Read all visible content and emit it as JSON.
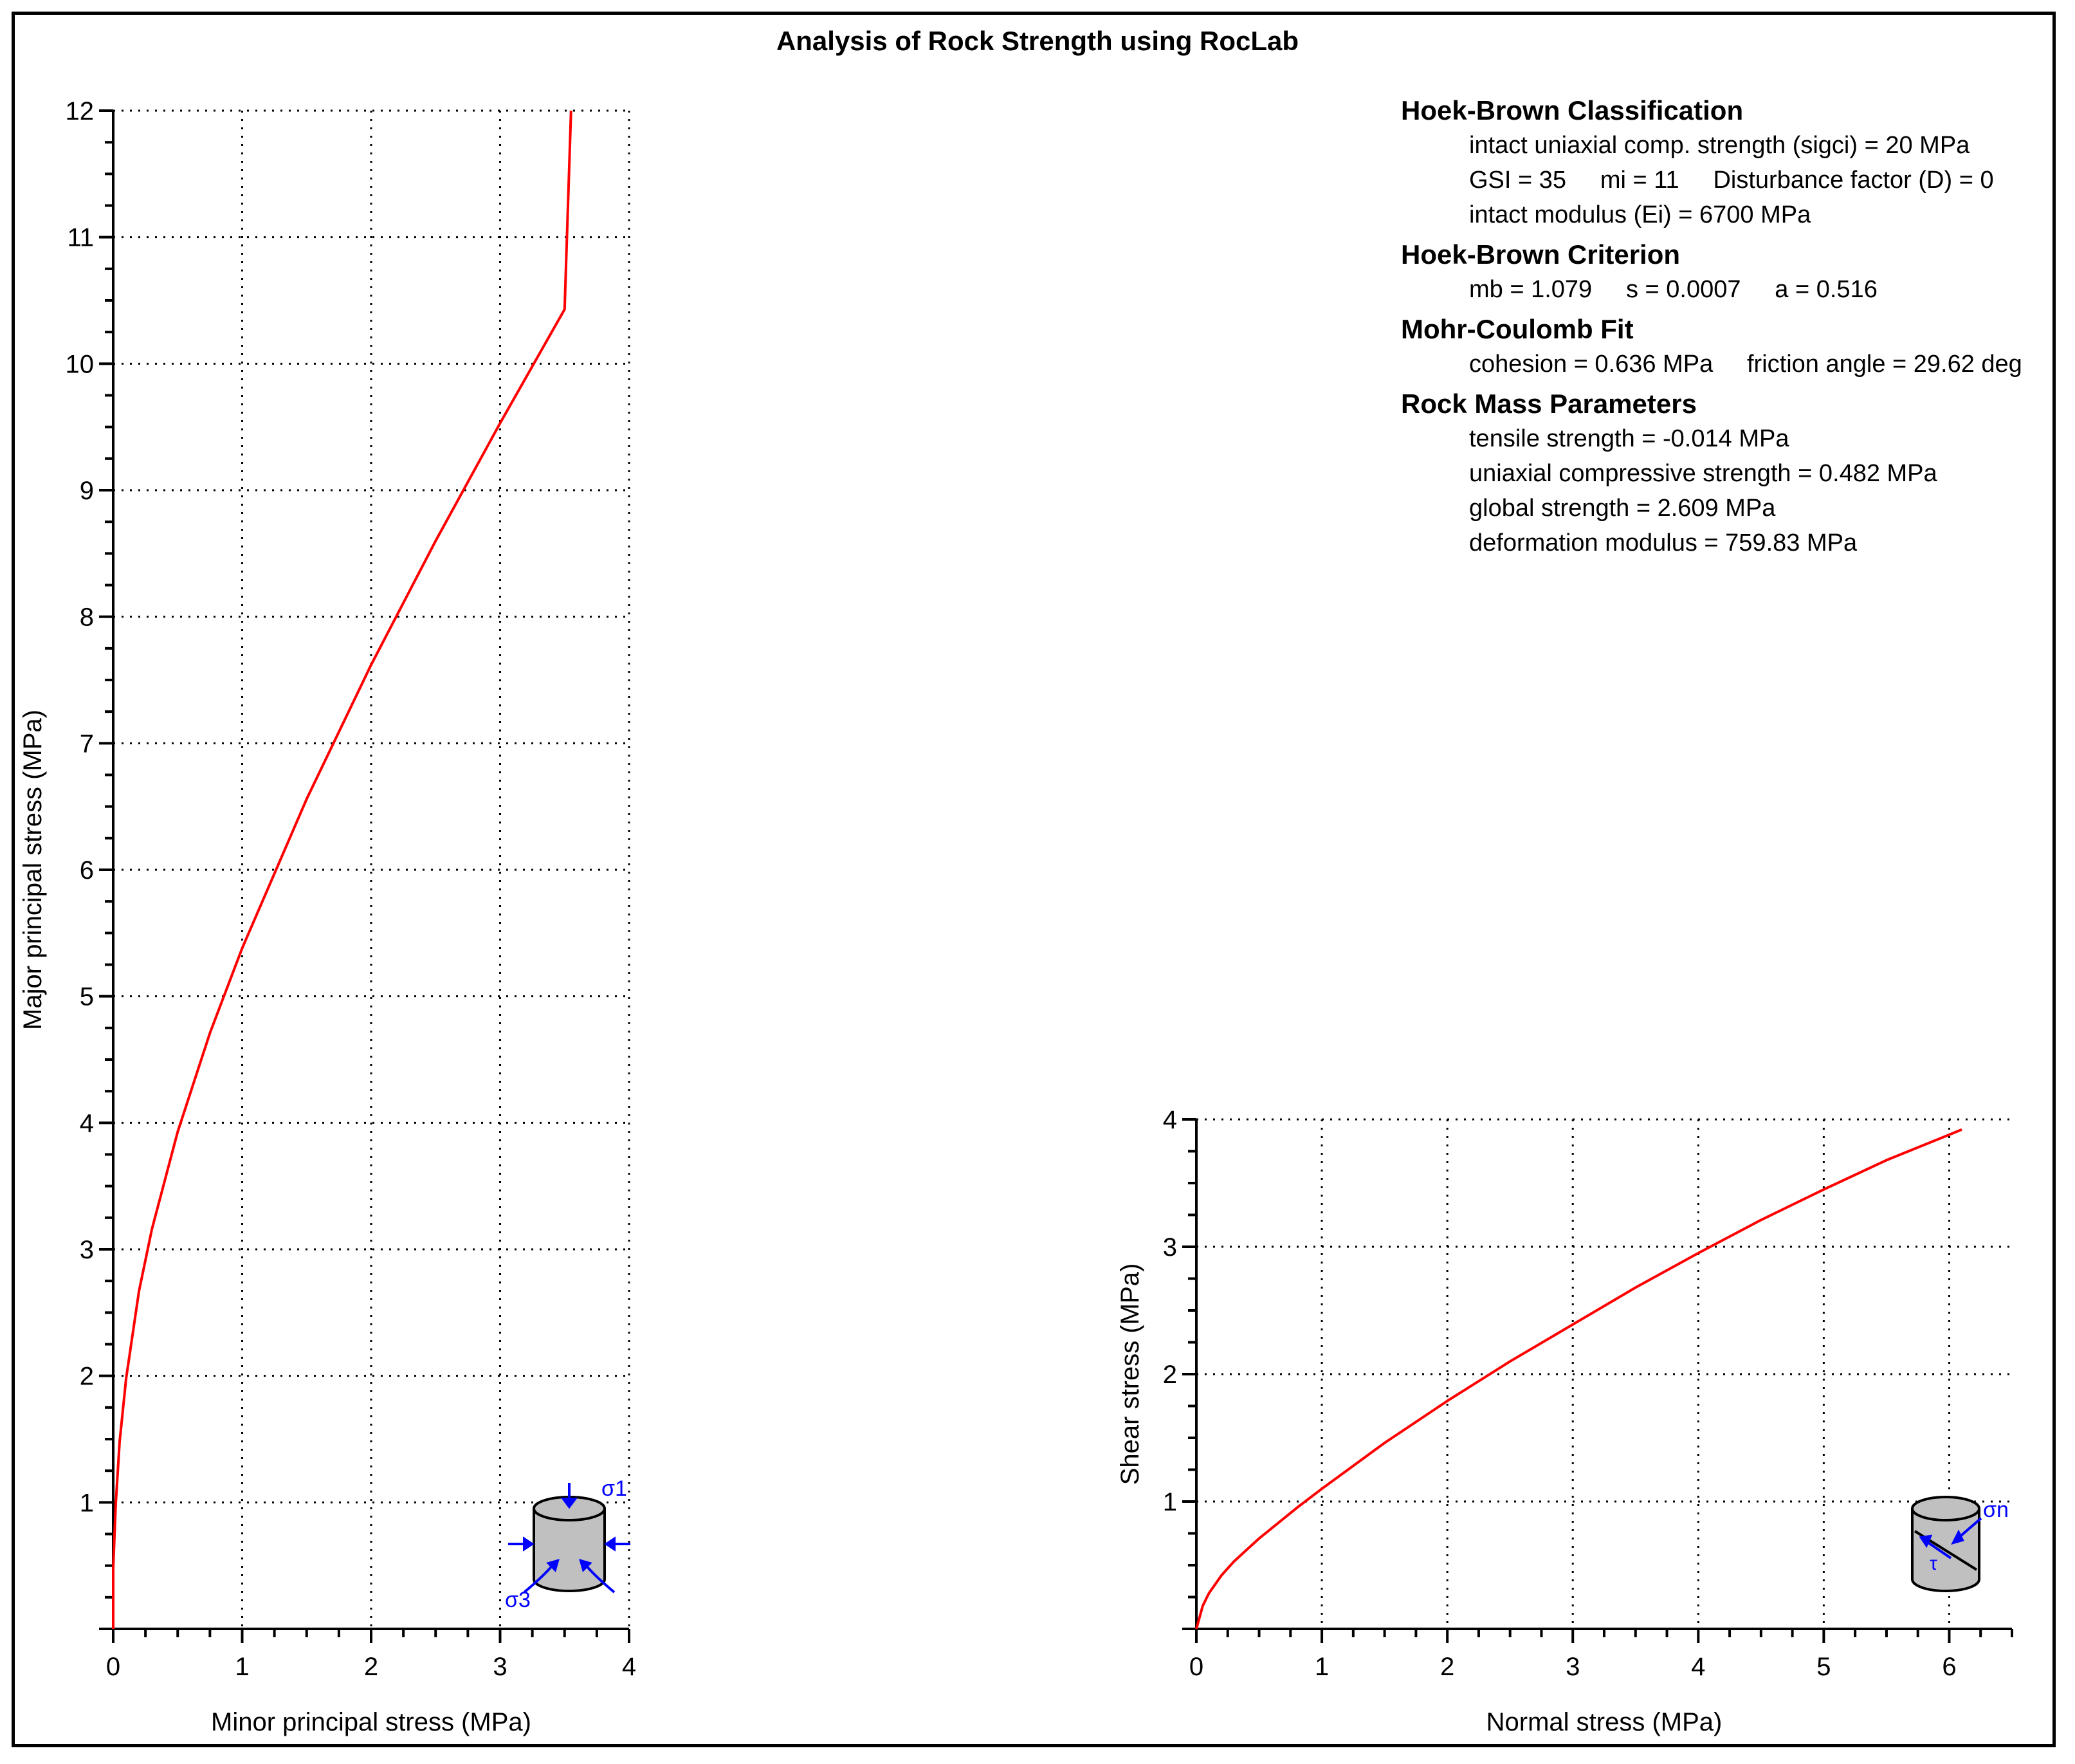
{
  "title": "Analysis of Rock Strength using RocLab",
  "info": {
    "hb_class": {
      "heading": "Hoek-Brown Classification",
      "lines": [
        "intact uniaxial comp. strength (sigci) = 20 MPa",
        "GSI = 35     mi = 11     Disturbance factor (D) = 0",
        "intact modulus (Ei) = 6700 MPa"
      ]
    },
    "hb_crit": {
      "heading": "Hoek-Brown Criterion",
      "lines": [
        "mb = 1.079     s = 0.0007     a = 0.516"
      ]
    },
    "mc_fit": {
      "heading": "Mohr-Coulomb Fit",
      "lines": [
        "cohesion = 0.636 MPa     friction angle = 29.62 deg"
      ]
    },
    "rm_params": {
      "heading": "Rock Mass Parameters",
      "lines": [
        "tensile strength = -0.014 MPa",
        "uniaxial compressive strength = 0.482 MPa",
        "global strength = 2.609 MPa",
        "deformation modulus = 759.83 MPa"
      ]
    }
  },
  "icons": {
    "left": {
      "name": "triaxial-cylinder-icon",
      "labels": {
        "s1": "σ1",
        "s3": "σ3"
      },
      "color": "#0000ff"
    },
    "right": {
      "name": "shear-cylinder-icon",
      "labels": {
        "sn": "σn",
        "tau": "τ"
      },
      "color": "#0000ff"
    }
  },
  "chart_data": [
    {
      "type": "line",
      "xlabel": "Minor principal stress (MPa)",
      "ylabel": "Major principal stress (MPa)",
      "xlim": [
        0,
        4
      ],
      "ylim": [
        0,
        12
      ],
      "xticks": [
        0,
        1,
        2,
        3,
        4
      ],
      "yticks": [
        1,
        2,
        3,
        4,
        5,
        6,
        7,
        8,
        9,
        10,
        11,
        12
      ],
      "grid": true,
      "line_color": "#ff0000",
      "series": [
        {
          "x": [
            -0.014,
            0,
            0.02,
            0.05,
            0.1,
            0.2,
            0.3,
            0.5,
            0.75,
            1.0,
            1.5,
            2.0,
            2.5,
            3.0,
            3.5,
            3.55
          ],
          "y": [
            0,
            0.48,
            0.99,
            1.48,
            1.98,
            2.67,
            3.16,
            3.93,
            4.71,
            5.38,
            6.56,
            7.62,
            8.6,
            9.53,
            10.43,
            12.0
          ]
        }
      ]
    },
    {
      "type": "line",
      "xlabel": "Normal stress (MPa)",
      "ylabel": "Shear stress (MPa)",
      "xlim": [
        0,
        6.5
      ],
      "ylim": [
        0,
        4
      ],
      "xticks": [
        0,
        1,
        2,
        3,
        4,
        5,
        6
      ],
      "yticks": [
        1,
        2,
        3,
        4
      ],
      "grid": true,
      "line_color": "#ff0000",
      "series": [
        {
          "x": [
            0,
            0.05,
            0.1,
            0.2,
            0.3,
            0.5,
            0.8,
            1.0,
            1.5,
            2.0,
            2.5,
            3.0,
            3.5,
            4.0,
            4.5,
            5.0,
            5.5,
            6.0,
            6.1
          ],
          "y": [
            0,
            0.18,
            0.28,
            0.42,
            0.53,
            0.71,
            0.95,
            1.1,
            1.46,
            1.79,
            2.1,
            2.39,
            2.68,
            2.95,
            3.21,
            3.45,
            3.68,
            3.88,
            3.92
          ]
        }
      ]
    }
  ]
}
